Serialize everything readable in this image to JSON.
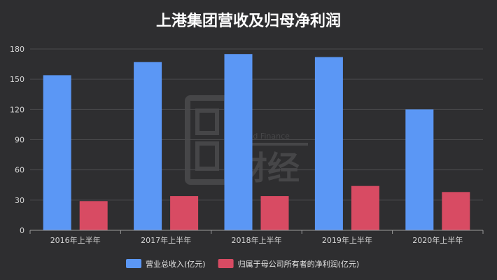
{
  "chart_data": {
    "type": "bar",
    "title": "上港集团营收及归母净利润",
    "categories": [
      "2016年上半年",
      "2017年上半年",
      "2018年上半年",
      "2019年上半年",
      "2020年上半年"
    ],
    "series": [
      {
        "name": "营业总收入(亿元)",
        "values": [
          154,
          167,
          175,
          172,
          120
        ],
        "color": "#5b97f5"
      },
      {
        "name": "归属于母公司所有者的净利润(亿元)",
        "values": [
          29,
          34,
          34,
          44,
          38
        ],
        "color": "#d84b63"
      }
    ],
    "ylim": [
      0,
      180
    ],
    "yticks": [
      0,
      30,
      60,
      90,
      120,
      150,
      180
    ],
    "grid": true,
    "legend_position": "bottom"
  },
  "watermark": {
    "brand_en": "Bread Finance",
    "brand_cn": "财经"
  },
  "colors": {
    "background": "#2e2e30",
    "grid": "#4a4a4c",
    "axis": "#9a9a9a"
  }
}
